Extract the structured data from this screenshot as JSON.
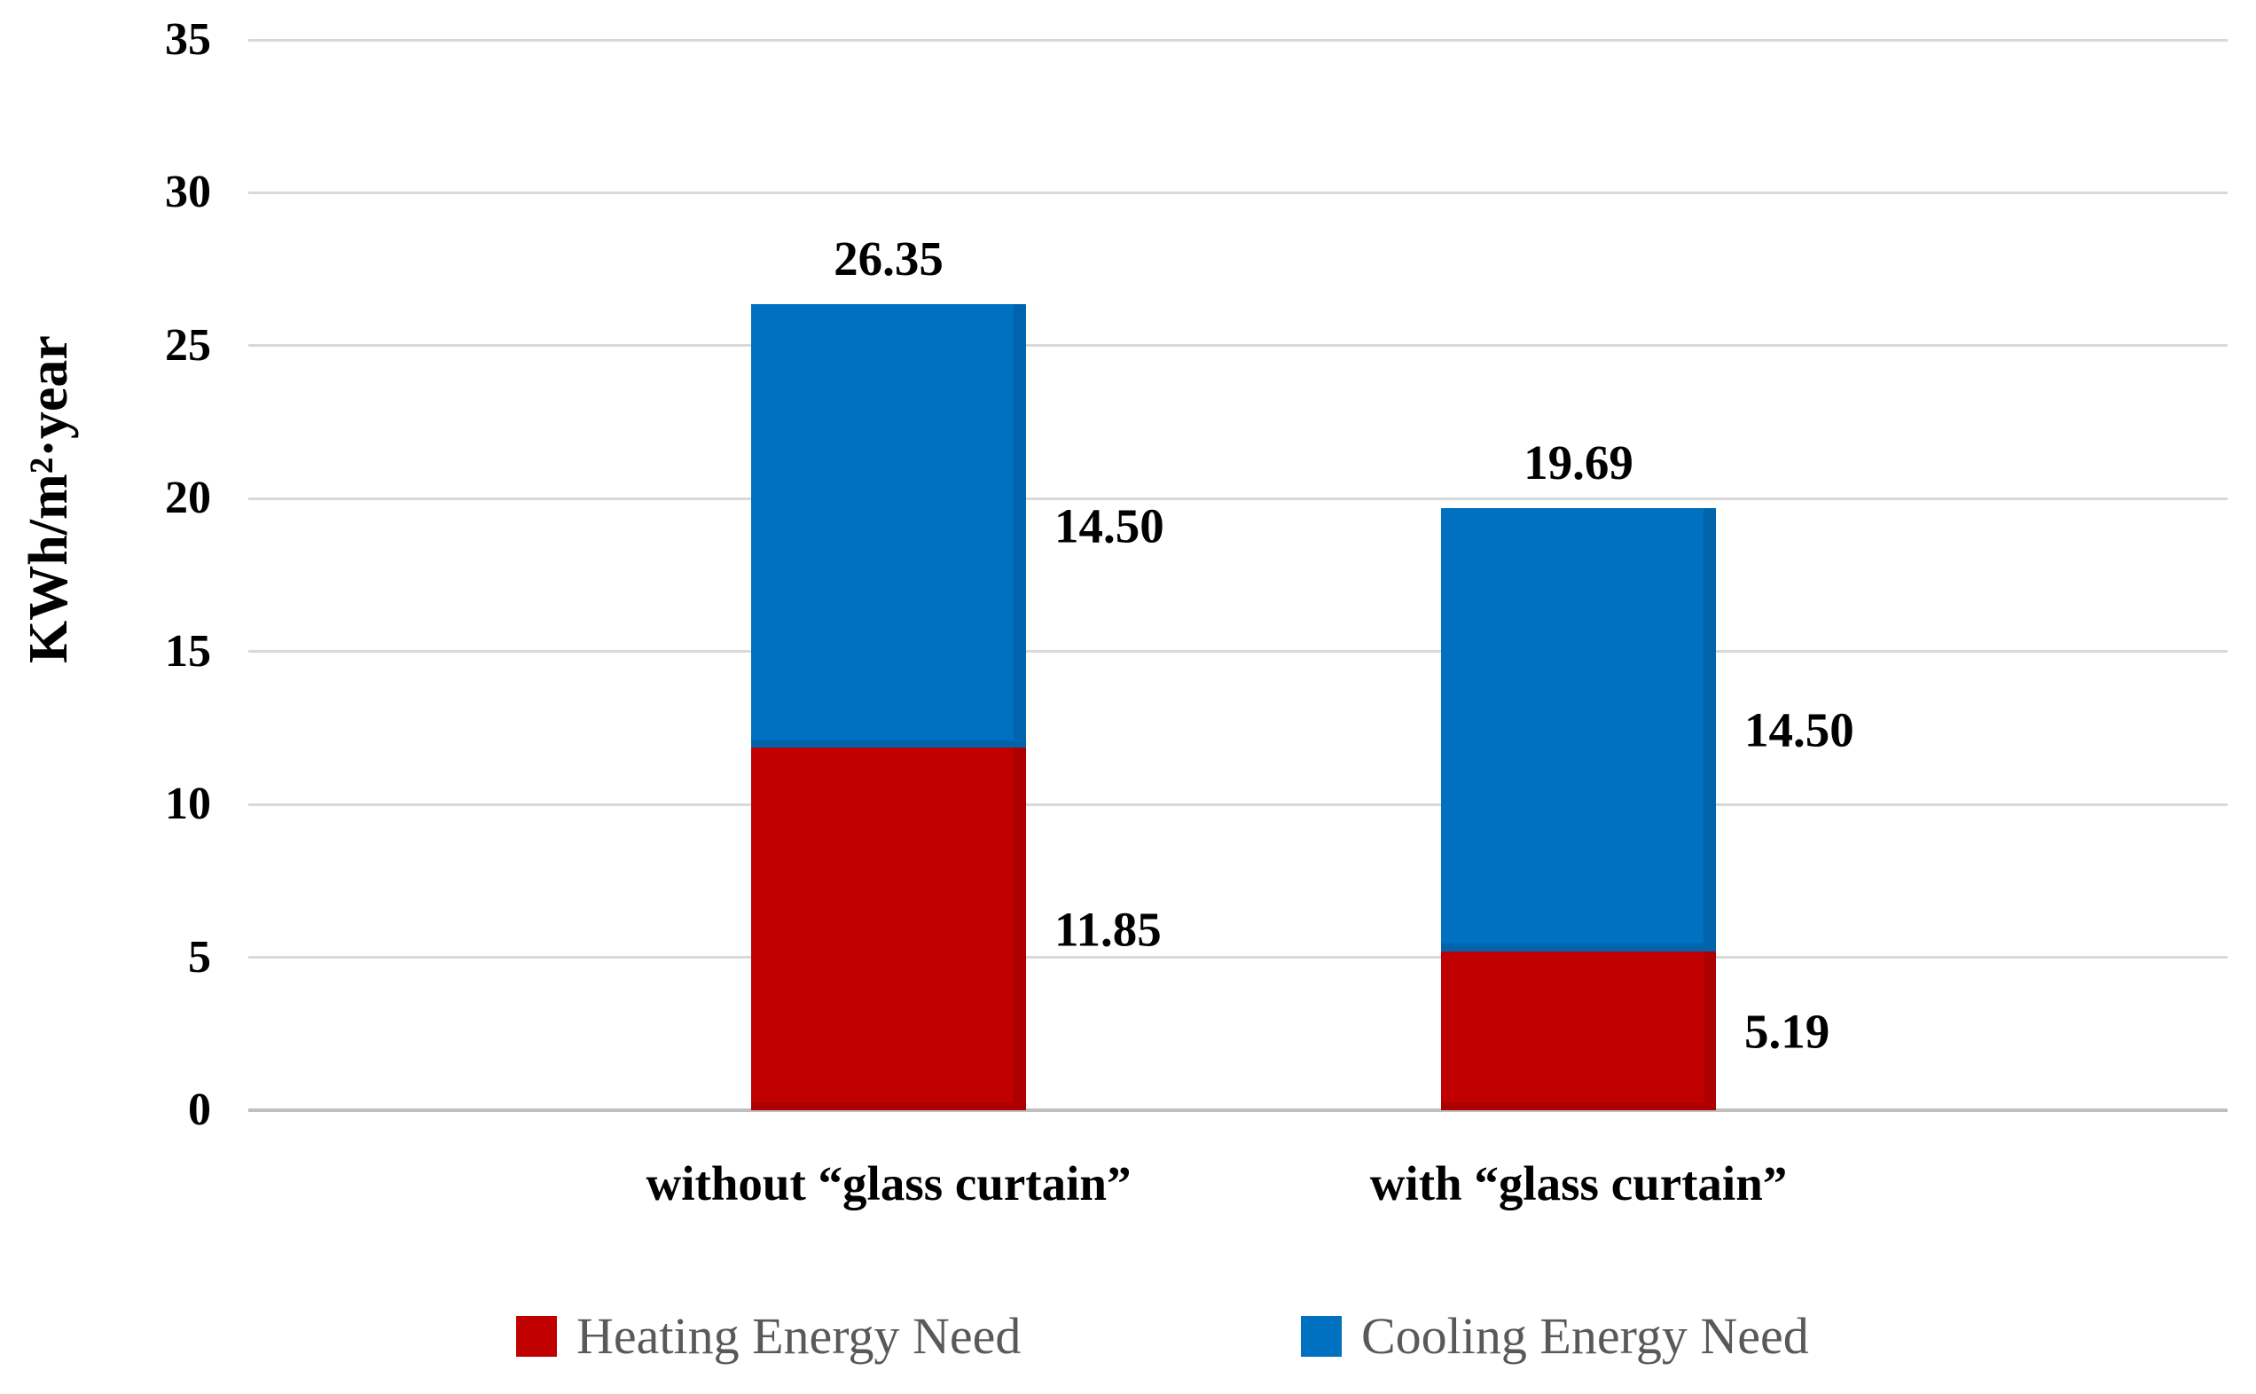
{
  "chart_data": {
    "type": "bar",
    "stacked": true,
    "ylabel": "KWh/m²·year",
    "ylim": [
      0,
      35
    ],
    "yticks": [
      0,
      5,
      10,
      15,
      20,
      25,
      30,
      35
    ],
    "grid": true,
    "legend_position": "bottom",
    "categories": [
      "without “glass curtain”",
      "with “glass curtain”"
    ],
    "series": [
      {
        "name": "Heating Energy Need",
        "color": "#c00000",
        "values": [
          11.85,
          5.19
        ],
        "labels": [
          "11.85",
          "5.19"
        ]
      },
      {
        "name": "Cooling Energy Need",
        "color": "#0070c0",
        "values": [
          14.5,
          14.5
        ],
        "labels": [
          "14.50",
          "14.50"
        ]
      }
    ],
    "totals": [
      26.35,
      19.69
    ],
    "total_labels": [
      "26.35",
      "19.69"
    ]
  },
  "colors": {
    "heating": "#c00000",
    "cooling": "#0070c0",
    "gridline": "#d9d9d9",
    "axis_line": "#bfbfbf",
    "label_text": "#000000",
    "legend_text": "#595959",
    "background": "#ffffff"
  }
}
